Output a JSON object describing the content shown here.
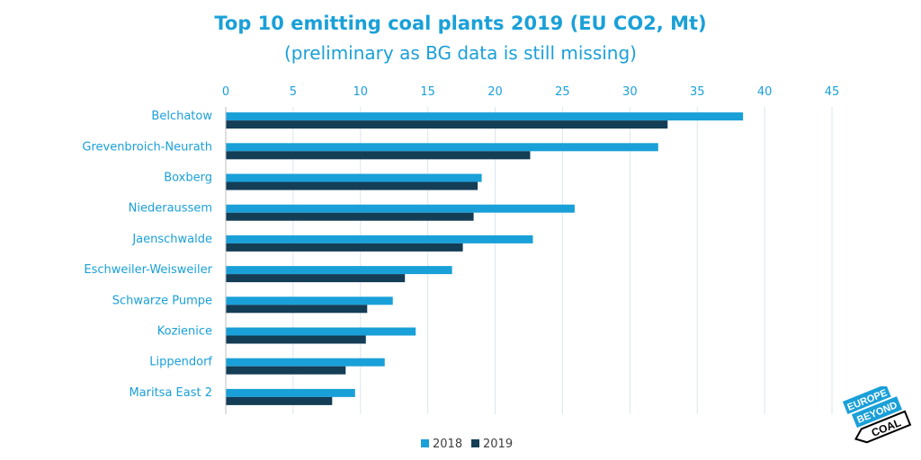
{
  "chart_data": {
    "type": "bar",
    "orientation": "horizontal",
    "title": "Top 10 emitting coal plants 2019 (EU CO2, Mt)",
    "subtitle": "(preliminary as BG data is still missing)",
    "categories": [
      "Belchatow",
      "Grevenbroich-Neurath",
      "Boxberg",
      "Niederaussem",
      "Jaenschwalde",
      "Eschweiler-Weisweiler",
      "Schwarze Pumpe",
      "Kozienice",
      "Lippendorf",
      "Maritsa East 2"
    ],
    "series": [
      {
        "name": "2018",
        "color": "#1AA0D8",
        "values": [
          38.4,
          32.1,
          19.0,
          25.9,
          22.8,
          16.8,
          12.4,
          14.1,
          11.8,
          9.6
        ]
      },
      {
        "name": "2019",
        "color": "#143D56",
        "values": [
          32.8,
          22.6,
          18.7,
          18.4,
          17.6,
          13.3,
          10.5,
          10.4,
          8.9,
          7.9
        ]
      }
    ],
    "xlim": [
      0,
      45
    ],
    "xticks": [
      "0",
      "5",
      "10",
      "15",
      "20",
      "25",
      "30",
      "35",
      "40",
      "45"
    ],
    "grid": true,
    "legend_position": "bottom"
  },
  "logo": {
    "line1": "EUROPE",
    "line2": "BEYOND",
    "line3": "COAL",
    "colors": {
      "blue": "#1AA0D8",
      "dark": "#000000"
    }
  }
}
